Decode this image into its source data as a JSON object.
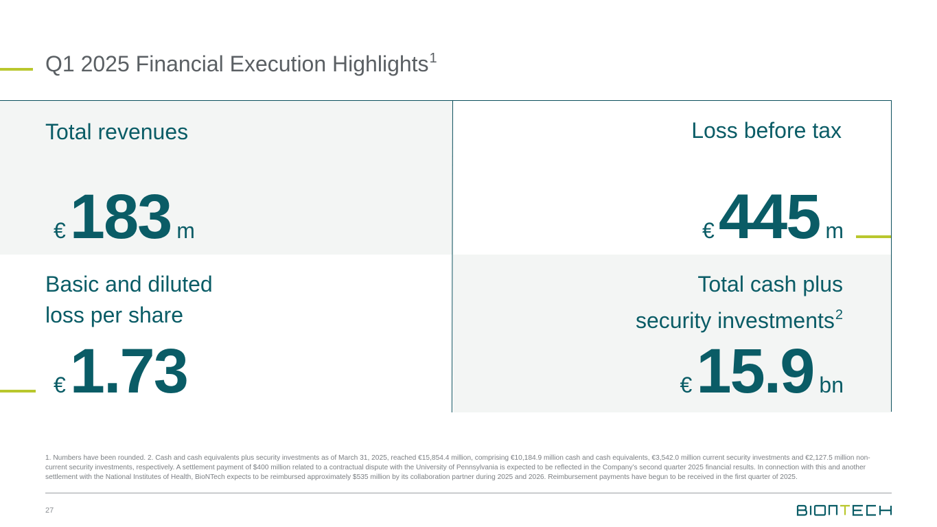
{
  "header": {
    "title": "Q1 2025 Financial Execution Highlights",
    "title_footnote_ref": "1"
  },
  "highlights": [
    {
      "label": "Total revenues",
      "currency": "€",
      "value": "183",
      "unit": "m"
    },
    {
      "label": "Loss before tax",
      "currency": "€",
      "value": "445",
      "unit": "m"
    },
    {
      "label_line1": "Basic and diluted",
      "label_line2": "loss per share",
      "currency": "€",
      "value": "1.73",
      "unit": ""
    },
    {
      "label_line1": "Total cash plus",
      "label_line2": "security investments",
      "label_footnote_ref": "2",
      "currency": "€",
      "value": "15.9",
      "unit": "bn"
    }
  ],
  "footnote": "1. Numbers have been rounded. 2. Cash and cash equivalents plus security investments as of March 31, 2025, reached €15,854.4 million, comprising €10,184.9 million cash and cash equivalents, €3,542.0 million current security investments and €2,127.5 million non-current security investments, respectively. A settlement payment of $400 million related to a contractual dispute with the University of Pennsylvania is expected to be reflected in the Company’s second quarter 2025 financial results. In connection with this and another settlement with the National Institutes of Health, BioNTech expects to be reimbursed approximately $535 million by its collaboration partner during 2025 and 2026. Reimbursement payments have begun to be received in the first quarter of 2025.",
  "page_number": "27",
  "brand": {
    "name": "BIONTECH",
    "primary_color": "#0a5c66",
    "accent_color": "#b9c72d"
  }
}
